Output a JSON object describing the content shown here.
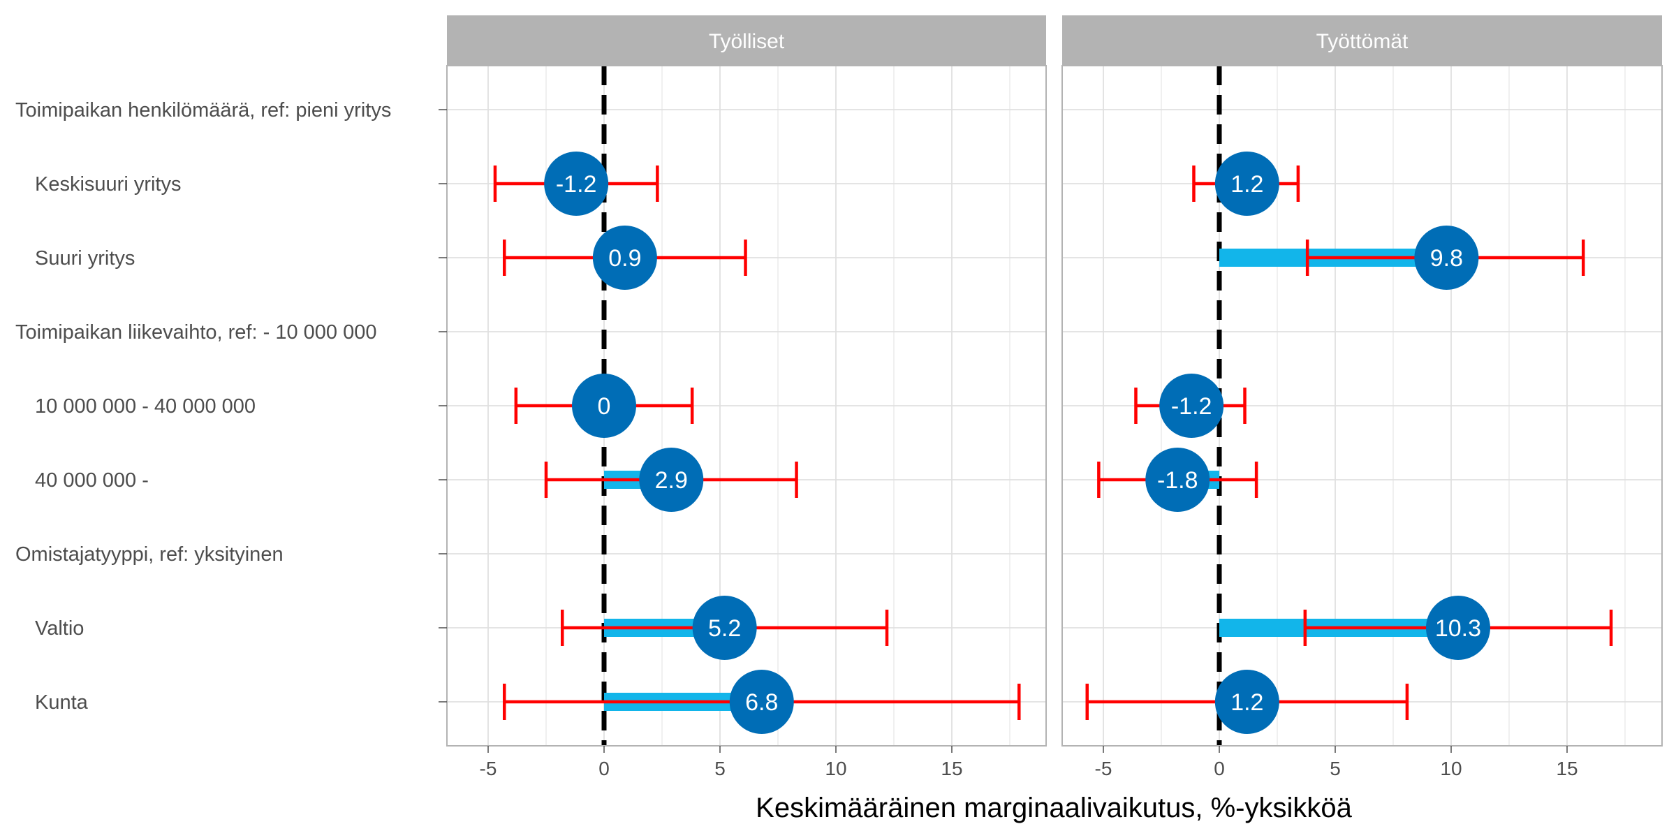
{
  "chart_data": {
    "type": "forest-plot",
    "xlabel": "Keskimääräinen marginaalivaikutus, %-yksikköä",
    "xlim": [
      -5.2,
      18.9
    ],
    "xticks": [
      -5,
      0,
      5,
      10,
      15
    ],
    "xtick_labels": [
      "-5",
      "0",
      "5",
      "10",
      "15"
    ],
    "reference_line": 0,
    "grid": true,
    "categories": [
      {
        "label": "Toimipaikan henkilömäärä, ref: pieni yritys",
        "header": true
      },
      {
        "label": "Keskisuuri yritys",
        "header": false
      },
      {
        "label": "Suuri yritys",
        "header": false
      },
      {
        "label": "Toimipaikan liikevaihto, ref: - 10 000 000",
        "header": true
      },
      {
        "label": "10 000 000 - 40 000 000",
        "header": false
      },
      {
        "label": "40 000 000 -",
        "header": false
      },
      {
        "label": "Omistajatyyppi, ref: yksityinen",
        "header": true
      },
      {
        "label": "Valtio",
        "header": false
      },
      {
        "label": "Kunta",
        "header": false
      }
    ],
    "panels": [
      {
        "title": "Työlliset",
        "points": [
          {
            "row": 1,
            "value": -1.2,
            "label": "-1.2",
            "lo": -4.7,
            "hi": 2.3
          },
          {
            "row": 2,
            "value": 0.9,
            "label": "0.9",
            "lo": -4.3,
            "hi": 6.1
          },
          {
            "row": 4,
            "value": 0,
            "label": "0",
            "lo": -3.8,
            "hi": 3.8
          },
          {
            "row": 5,
            "value": 2.9,
            "label": "2.9",
            "lo": -2.5,
            "hi": 8.3
          },
          {
            "row": 7,
            "value": 5.2,
            "label": "5.2",
            "lo": -1.8,
            "hi": 12.2
          },
          {
            "row": 8,
            "value": 6.8,
            "label": "6.8",
            "lo": -4.3,
            "hi": 17.9
          }
        ]
      },
      {
        "title": "Työttömät",
        "points": [
          {
            "row": 1,
            "value": 1.2,
            "label": "1.2",
            "lo": -1.1,
            "hi": 3.4
          },
          {
            "row": 2,
            "value": 9.8,
            "label": "9.8",
            "lo": 3.8,
            "hi": 15.7
          },
          {
            "row": 4,
            "value": -1.2,
            "label": "-1.2",
            "lo": -3.6,
            "hi": 1.1
          },
          {
            "row": 5,
            "value": -1.8,
            "label": "-1.8",
            "lo": -5.2,
            "hi": 1.6
          },
          {
            "row": 7,
            "value": 10.3,
            "label": "10.3",
            "lo": 3.7,
            "hi": 16.9
          },
          {
            "row": 8,
            "value": 1.2,
            "label": "1.2",
            "lo": -5.7,
            "hi": 8.1
          }
        ]
      }
    ],
    "colors": {
      "bar": "#12b5ea",
      "point": "#006db6",
      "error": "#ff0000",
      "reference": "#000000",
      "strip": "#b3b3b3",
      "grid": "#e0e0e0",
      "panel_border": "#b3b3b3"
    }
  }
}
